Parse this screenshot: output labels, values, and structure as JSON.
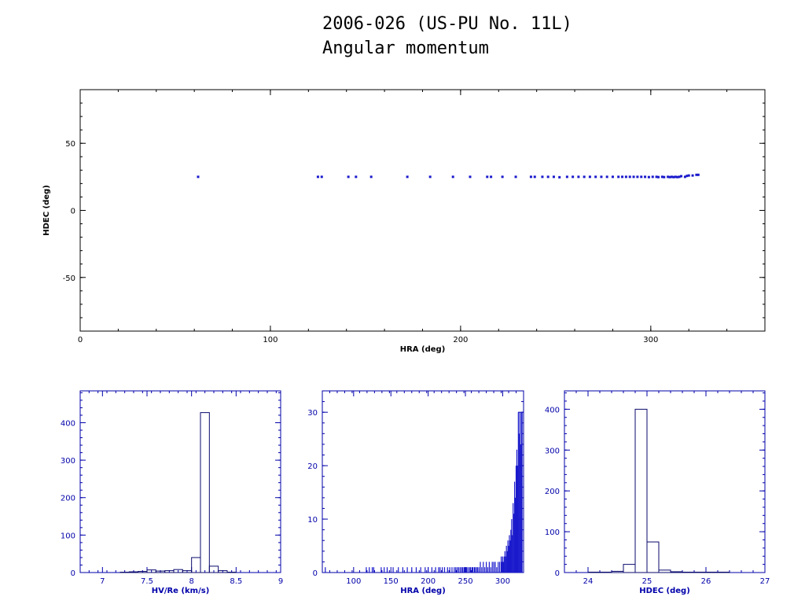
{
  "page": {
    "title_line1": "2006-026 (US-PU No. 11L)",
    "title_line2": "Angular momentum"
  },
  "colors": {
    "data": "#1a1acc",
    "axes": "#000000",
    "hist_axes": "#0000aa",
    "text": "#000000"
  },
  "chart_data": [
    {
      "id": "scatter",
      "type": "scatter",
      "title": "",
      "xlabel": "HRA (deg)",
      "ylabel": "HDEC (deg)",
      "xlim": [
        0,
        360
      ],
      "ylim": [
        -90,
        90
      ],
      "xticks": [
        0,
        100,
        200,
        300
      ],
      "yticks": [
        -50,
        0,
        50
      ],
      "grid": false,
      "points": [
        [
          62,
          25
        ],
        [
          125,
          25
        ],
        [
          127,
          25
        ],
        [
          141,
          25
        ],
        [
          145,
          25
        ],
        [
          153,
          25
        ],
        [
          172,
          25
        ],
        [
          184,
          25
        ],
        [
          196,
          25
        ],
        [
          205,
          25
        ],
        [
          214,
          25
        ],
        [
          216,
          25
        ],
        [
          222,
          25
        ],
        [
          229,
          25
        ],
        [
          237,
          25
        ],
        [
          239,
          25
        ],
        [
          243,
          25
        ],
        [
          246,
          25
        ],
        [
          249,
          25
        ],
        [
          252,
          24.7
        ],
        [
          256,
          25
        ],
        [
          259,
          25
        ],
        [
          262,
          25
        ],
        [
          265,
          25
        ],
        [
          268,
          25
        ],
        [
          271,
          25
        ],
        [
          274,
          25
        ],
        [
          277,
          25
        ],
        [
          280,
          25
        ],
        [
          283,
          25
        ],
        [
          285,
          25
        ],
        [
          287,
          25
        ],
        [
          289,
          25
        ],
        [
          291,
          25
        ],
        [
          293,
          25
        ],
        [
          295,
          25
        ],
        [
          297,
          25
        ],
        [
          299,
          24.8
        ],
        [
          301,
          25
        ],
        [
          303,
          25
        ],
        [
          304,
          24.8
        ],
        [
          306,
          25
        ],
        [
          307,
          24.8
        ],
        [
          309,
          25
        ],
        [
          310,
          24.8
        ],
        [
          311,
          25
        ],
        [
          312,
          24.8
        ],
        [
          313,
          25
        ],
        [
          314,
          24.8
        ],
        [
          315,
          25
        ],
        [
          316,
          25.5
        ],
        [
          318,
          25
        ],
        [
          319,
          25.7
        ],
        [
          320,
          26
        ],
        [
          322,
          26
        ],
        [
          324,
          26.5
        ],
        [
          325,
          26.5
        ]
      ]
    },
    {
      "id": "hist-velocity",
      "type": "bar",
      "title": "",
      "xlabel": "HV/Re (km/s)",
      "ylabel": "",
      "xlim": [
        6.75,
        9
      ],
      "ylim": [
        0,
        485
      ],
      "xticks": [
        "7",
        "7.5",
        "8",
        "8.5",
        "9"
      ],
      "xtick_values": [
        7,
        7.5,
        8,
        8.5,
        9
      ],
      "yticks": [
        0,
        100,
        200,
        300,
        400
      ],
      "bin_edges": [
        7.2,
        7.3,
        7.4,
        7.5,
        7.6,
        7.7,
        7.8,
        7.9,
        8.0,
        8.1,
        8.2,
        8.3,
        8.4,
        8.5
      ],
      "values": [
        1,
        2,
        3,
        7,
        4,
        5,
        8,
        5,
        40,
        427,
        17,
        5,
        1
      ]
    },
    {
      "id": "hist-hra",
      "type": "bar",
      "title": "",
      "xlabel": "HRA (deg)",
      "ylabel": "",
      "xlim": [
        58,
        328
      ],
      "ylim": [
        0,
        34
      ],
      "xticks": [
        "100",
        "150",
        "200",
        "250",
        "300"
      ],
      "xtick_values": [
        100,
        150,
        200,
        250,
        300
      ],
      "yticks": [
        0,
        10,
        20,
        30
      ],
      "spikes": [
        [
          62,
          1
        ],
        [
          117,
          1
        ],
        [
          121,
          1
        ],
        [
          125,
          1
        ],
        [
          127,
          1
        ],
        [
          137,
          1
        ],
        [
          141,
          1
        ],
        [
          145,
          1
        ],
        [
          153,
          1
        ],
        [
          160,
          1
        ],
        [
          166,
          1
        ],
        [
          172,
          1
        ],
        [
          178,
          1
        ],
        [
          184,
          1
        ],
        [
          190,
          1
        ],
        [
          196,
          1
        ],
        [
          200,
          1
        ],
        [
          205,
          1
        ],
        [
          210,
          1
        ],
        [
          214,
          1
        ],
        [
          216,
          1
        ],
        [
          219,
          1
        ],
        [
          222,
          1
        ],
        [
          226,
          1
        ],
        [
          229,
          1
        ],
        [
          232,
          1
        ],
        [
          235,
          1
        ],
        [
          237,
          1
        ],
        [
          239,
          1
        ],
        [
          241,
          1
        ],
        [
          243,
          1
        ],
        [
          245,
          1
        ],
        [
          246,
          1
        ],
        [
          248,
          1
        ],
        [
          249,
          1
        ],
        [
          251,
          1
        ],
        [
          252,
          1
        ],
        [
          254,
          1
        ],
        [
          256,
          1
        ],
        [
          257,
          1
        ],
        [
          259,
          1
        ],
        [
          260,
          1
        ],
        [
          262,
          1
        ],
        [
          263,
          1
        ],
        [
          265,
          1
        ],
        [
          266,
          1
        ],
        [
          268,
          1
        ],
        [
          270,
          2
        ],
        [
          272,
          1
        ],
        [
          274,
          2
        ],
        [
          276,
          1
        ],
        [
          278,
          2
        ],
        [
          280,
          1
        ],
        [
          282,
          2
        ],
        [
          284,
          1
        ],
        [
          286,
          2
        ],
        [
          288,
          2
        ],
        [
          290,
          2
        ],
        [
          292,
          1
        ],
        [
          294,
          2
        ],
        [
          296,
          2
        ],
        [
          298,
          3
        ],
        [
          299,
          2
        ],
        [
          300,
          3
        ],
        [
          301,
          2
        ],
        [
          302,
          3
        ],
        [
          303,
          4
        ],
        [
          304,
          3
        ],
        [
          305,
          5
        ],
        [
          306,
          4
        ],
        [
          307,
          6
        ],
        [
          308,
          5
        ],
        [
          309,
          7
        ],
        [
          310,
          6
        ],
        [
          311,
          8
        ],
        [
          312,
          10
        ],
        [
          313,
          7
        ],
        [
          314,
          13
        ],
        [
          315,
          11
        ],
        [
          316,
          17
        ],
        [
          317,
          14
        ],
        [
          318,
          20
        ],
        [
          319,
          23
        ],
        [
          320,
          20
        ],
        [
          321,
          30
        ],
        [
          322,
          26
        ],
        [
          323,
          30
        ],
        [
          324,
          24
        ],
        [
          325,
          30
        ],
        [
          326,
          30
        ]
      ]
    },
    {
      "id": "hist-hdec",
      "type": "bar",
      "title": "",
      "xlabel": "HDEC (deg)",
      "ylabel": "",
      "xlim": [
        23.6,
        27
      ],
      "ylim": [
        0,
        445
      ],
      "xticks": [
        "24",
        "25",
        "26",
        "27"
      ],
      "xtick_values": [
        24,
        25,
        26,
        27
      ],
      "yticks": [
        0,
        100,
        200,
        300,
        400
      ],
      "bin_edges": [
        24.0,
        24.2,
        24.4,
        24.6,
        24.8,
        25.0,
        25.2,
        25.4,
        25.6,
        25.8,
        26.0,
        26.2,
        26.4
      ],
      "values": [
        1,
        1,
        3,
        20,
        400,
        75,
        6,
        2,
        1,
        1,
        1,
        1
      ]
    }
  ]
}
